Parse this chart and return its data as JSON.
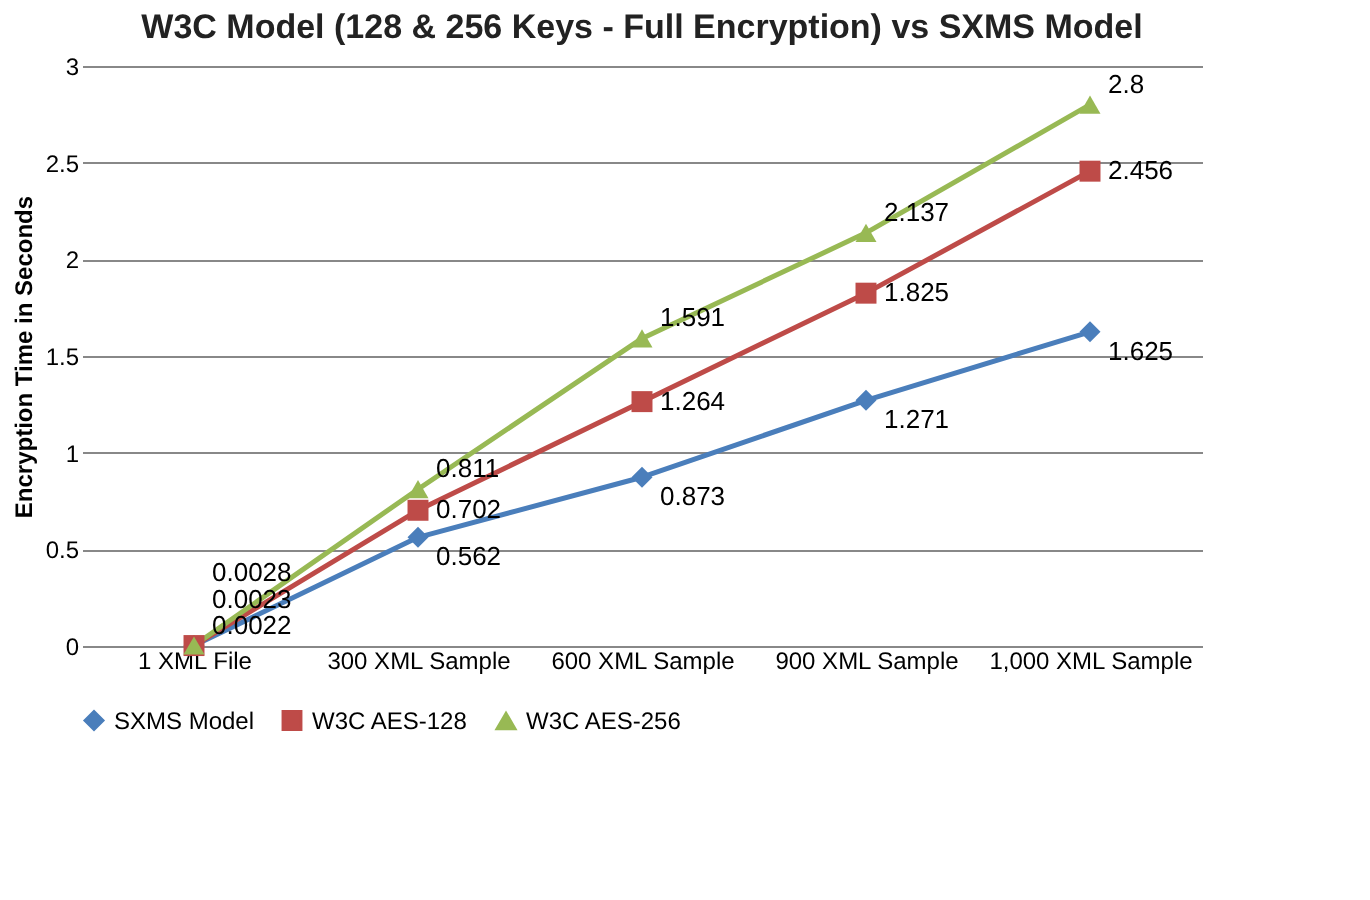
{
  "chart_data": {
    "type": "line",
    "title": "W3C Model (128 & 256 Keys - Full Encryption) vs SXMS Model",
    "ylabel": "Encryption Time in Seconds",
    "categories": [
      "1 XML File",
      "300 XML Sample",
      "600 XML Sample",
      "900 XML Sample",
      "1,000 XML Sample"
    ],
    "series": [
      {
        "name": "SXMS Model",
        "color": "#4a7ebb",
        "marker": "diamond",
        "values": [
          0.0022,
          0.562,
          0.873,
          1.271,
          1.625
        ]
      },
      {
        "name": "W3C AES-128",
        "color": "#be4b48",
        "marker": "square",
        "values": [
          0.0023,
          0.702,
          1.264,
          1.825,
          2.456
        ]
      },
      {
        "name": "W3C AES-256",
        "color": "#98b954",
        "marker": "triangle",
        "values": [
          0.0028,
          0.811,
          1.591,
          2.137,
          2.8
        ]
      }
    ],
    "ylim": [
      0,
      3
    ],
    "yticks": [
      0,
      0.5,
      1,
      1.5,
      2,
      2.5,
      3
    ],
    "grid": "y",
    "legend": "bottom",
    "data_labels": true,
    "line_style": "solid"
  }
}
